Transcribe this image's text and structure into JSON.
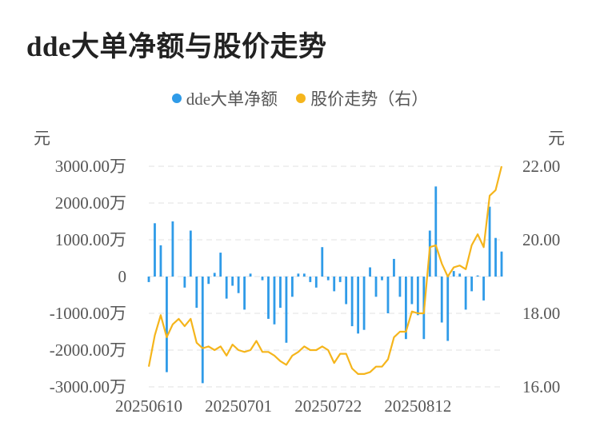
{
  "title": "dde大单净额与股价走势",
  "left_unit": "元",
  "right_unit": "元",
  "legend": [
    {
      "label": "dde大单净额",
      "color": "#2f9be8"
    },
    {
      "label": "股价走势（右）",
      "color": "#f5b51c"
    }
  ],
  "chart_data": {
    "type": "bar+line",
    "grid": true,
    "legend_position": "top-center",
    "x_tick_labels": [
      "20250610",
      "20250701",
      "20250722",
      "20250812"
    ],
    "x_tick_index": [
      0,
      15,
      30,
      45
    ],
    "y_left": {
      "min": -3000,
      "max": 3000,
      "tick_labels": [
        "3000.00万",
        "2000.00万",
        "1000.00万",
        "0",
        "-1000.00万",
        "-2000.00万",
        "-3000.00万"
      ],
      "tick_values": [
        3000,
        2000,
        1000,
        0,
        -1000,
        -2000,
        -3000
      ]
    },
    "y_right": {
      "min": 16,
      "max": 22,
      "tick_labels": [
        "22.00",
        "20.00",
        "18.00",
        "16.00"
      ],
      "tick_values": [
        22,
        20,
        18,
        16
      ]
    },
    "series": [
      {
        "name": "dde大单净额",
        "type": "bar",
        "axis": "left",
        "values": [
          -150,
          1450,
          850,
          -2600,
          1500,
          0,
          -300,
          1250,
          -850,
          -2900,
          -200,
          100,
          650,
          -600,
          -250,
          -450,
          -900,
          80,
          0,
          -100,
          -1150,
          -1300,
          -850,
          -1800,
          -550,
          80,
          80,
          -150,
          -300,
          800,
          -100,
          -400,
          -150,
          -750,
          -1350,
          -1550,
          -1450,
          250,
          -550,
          -100,
          -1000,
          480,
          -550,
          -1700,
          -750,
          -1050,
          -1700,
          1250,
          2450,
          -1250,
          -1750,
          150,
          80,
          -900,
          -400,
          30,
          -650,
          1900,
          1050,
          680
        ]
      },
      {
        "name": "股价走势（右）",
        "type": "line",
        "axis": "right",
        "values": [
          16.55,
          17.4,
          17.95,
          17.35,
          17.7,
          17.85,
          17.65,
          17.85,
          17.2,
          17.05,
          17.1,
          17.0,
          17.1,
          16.85,
          17.15,
          17.0,
          16.95,
          17.0,
          17.25,
          16.95,
          16.95,
          16.85,
          16.7,
          16.6,
          16.85,
          16.95,
          17.1,
          17.0,
          17.0,
          17.1,
          17.0,
          16.65,
          16.9,
          16.9,
          16.5,
          16.35,
          16.35,
          16.4,
          16.55,
          16.55,
          16.75,
          17.35,
          17.5,
          17.5,
          18.05,
          18.0,
          18.0,
          19.8,
          19.85,
          19.35,
          19.0,
          19.25,
          19.3,
          19.2,
          19.85,
          20.15,
          19.8,
          21.2,
          21.35,
          22.0
        ]
      }
    ]
  }
}
